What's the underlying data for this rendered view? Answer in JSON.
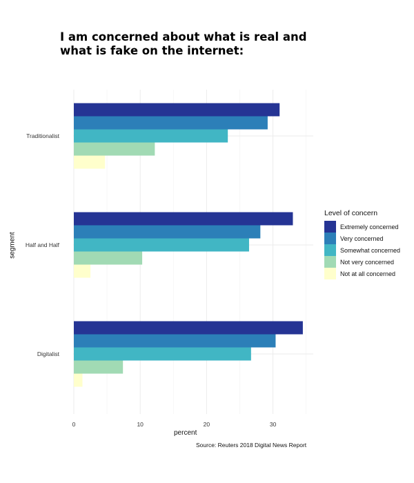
{
  "chart_data": {
    "type": "bar",
    "orientation": "horizontal",
    "title": "I am concerned about what is real and what is fake on the internet:",
    "xlabel": "percent",
    "ylabel": "segment",
    "source": "Source: Reuters 2018 Digital News Report",
    "xlim": [
      0,
      36
    ],
    "xticks": [
      0,
      10,
      20,
      30
    ],
    "grid": true,
    "legend_title": "Level of concern",
    "legend_position": "right",
    "categories": [
      "Traditionalist",
      "Half and Half",
      "Digitalist"
    ],
    "series": [
      {
        "name": "Extremely concerned",
        "color": "#253494",
        "values": [
          31,
          33,
          34.5
        ]
      },
      {
        "name": "Very concerned",
        "color": "#2c7fb8",
        "values": [
          29.2,
          28.1,
          30.4
        ]
      },
      {
        "name": "Somewhat concerned",
        "color": "#41b6c4",
        "values": [
          23.2,
          26.4,
          26.7
        ]
      },
      {
        "name": "Not very concerned",
        "color": "#a1dab4",
        "values": [
          12.2,
          10.3,
          7.4
        ]
      },
      {
        "name": "Not at all concerned",
        "color": "#ffffcc",
        "values": [
          4.7,
          2.5,
          1.3
        ]
      }
    ]
  }
}
